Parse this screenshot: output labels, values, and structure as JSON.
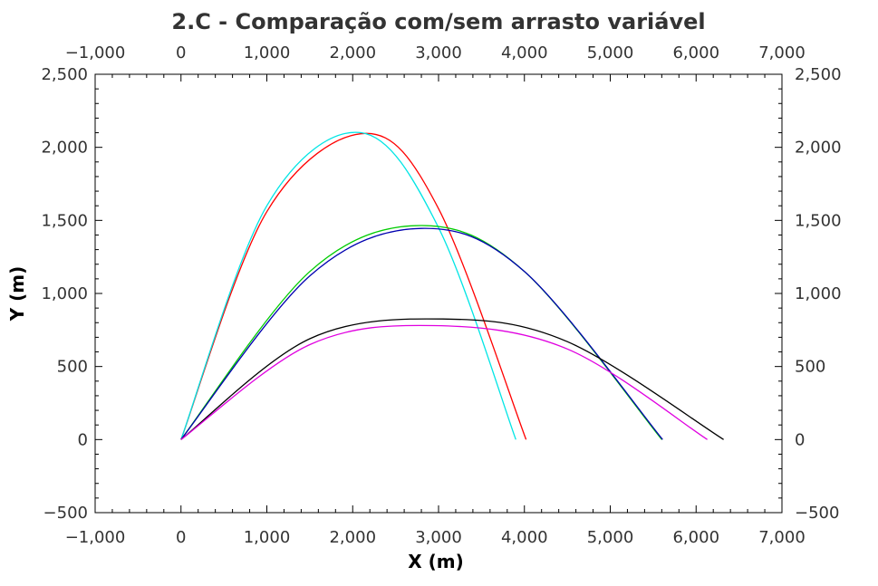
{
  "chart_data": {
    "type": "line",
    "title": "2.C - Comparação com/sem arrasto variável",
    "xlabel": "X (m)",
    "ylabel": "Y (m)",
    "xlim": [
      -1000,
      7000
    ],
    "ylim": [
      -500,
      2500
    ],
    "xticks": [
      -1000,
      0,
      1000,
      2000,
      3000,
      4000,
      5000,
      6000,
      7000
    ],
    "yticks": [
      -500,
      0,
      500,
      1000,
      1500,
      2000,
      2500
    ],
    "xtick_labels": [
      "−1,000",
      "0",
      "1,000",
      "2,000",
      "3,000",
      "4,000",
      "5,000",
      "6,000",
      "7,000"
    ],
    "ytick_labels": [
      "−500",
      "0",
      "500",
      "1,000",
      "1,500",
      "2,000",
      "2,500"
    ],
    "mirror_axes": true,
    "grid": false,
    "legend": "none",
    "series": [
      {
        "color": "#ff0000",
        "x": [
          0,
          1000,
          2150,
          3000,
          4020
        ],
        "y": [
          0,
          1560,
          2095,
          1580,
          0
        ]
      },
      {
        "color": "#00e5e5",
        "x": [
          0,
          1000,
          2100,
          3000,
          3900
        ],
        "y": [
          0,
          1600,
          2100,
          1450,
          0
        ]
      },
      {
        "color": "#00cc00",
        "x": [
          0,
          1500,
          2800,
          4000,
          5600
        ],
        "y": [
          0,
          1150,
          1465,
          1150,
          0
        ]
      },
      {
        "color": "#0000b0",
        "x": [
          0,
          1500,
          2800,
          4000,
          5610
        ],
        "y": [
          0,
          1120,
          1445,
          1150,
          0
        ]
      },
      {
        "color": "#000000",
        "x": [
          0,
          1500,
          3050,
          4500,
          6320
        ],
        "y": [
          0,
          690,
          825,
          670,
          0
        ]
      },
      {
        "color": "#e000e0",
        "x": [
          0,
          1500,
          2950,
          4500,
          6130
        ],
        "y": [
          0,
          650,
          780,
          620,
          0
        ]
      }
    ]
  }
}
